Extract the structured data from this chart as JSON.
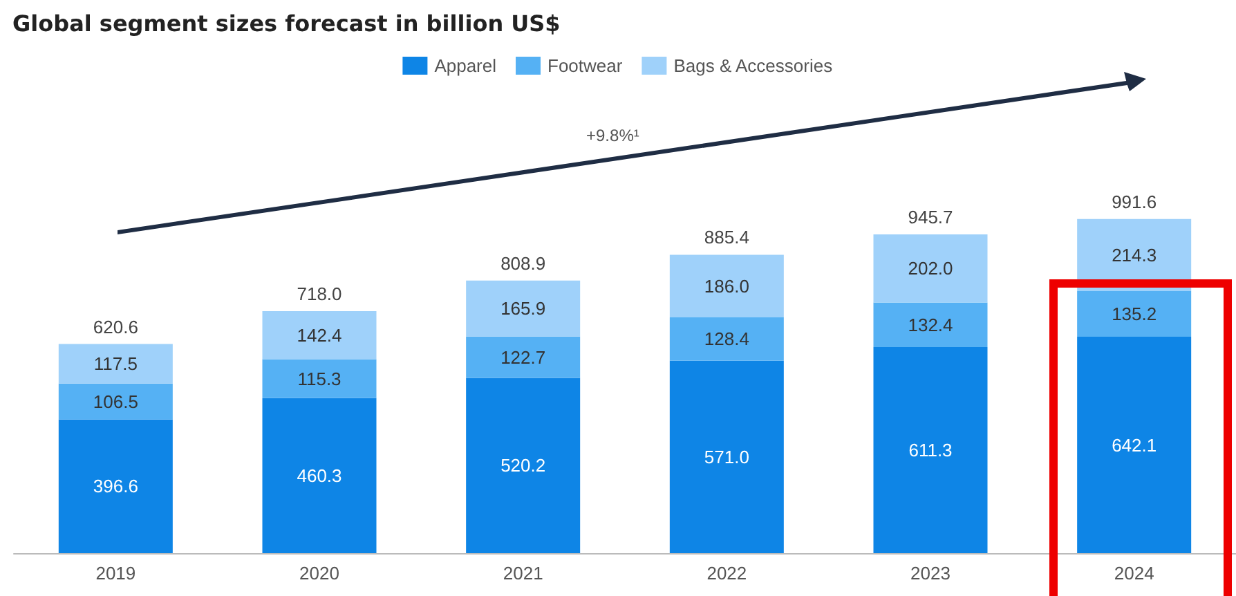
{
  "chart_data": {
    "type": "bar",
    "title": "Global segment sizes forecast in billion US$",
    "categories": [
      "2019",
      "2020",
      "2021",
      "2022",
      "2023",
      "2024"
    ],
    "stacked": true,
    "legend": "top",
    "series": [
      {
        "name": "Apparel",
        "color": "#0e85e6",
        "values": [
          396.6,
          460.3,
          520.2,
          571.0,
          611.3,
          642.1
        ],
        "value_labels": [
          "396.6",
          "460.3",
          "520.2",
          "571.0",
          "611.3",
          "642.1"
        ]
      },
      {
        "name": "Footwear",
        "color": "#55b1f4",
        "values": [
          106.5,
          115.3,
          122.7,
          128.4,
          132.4,
          135.2
        ],
        "value_labels": [
          "106.5",
          "115.3",
          "122.7",
          "128.4",
          "132.4",
          "135.2"
        ]
      },
      {
        "name": "Bags & Accessories",
        "color": "#9fd1fa",
        "values": [
          117.5,
          142.4,
          165.9,
          186.0,
          202.0,
          214.3
        ],
        "value_labels": [
          "117.5",
          "142.4",
          "165.9",
          "186.0",
          "202.0",
          "214.3"
        ]
      }
    ],
    "totals": [
      "620.6",
      "718.0",
      "808.9",
      "885.4",
      "945.7",
      "991.6"
    ],
    "annotations": [
      "+9.8%¹"
    ]
  }
}
